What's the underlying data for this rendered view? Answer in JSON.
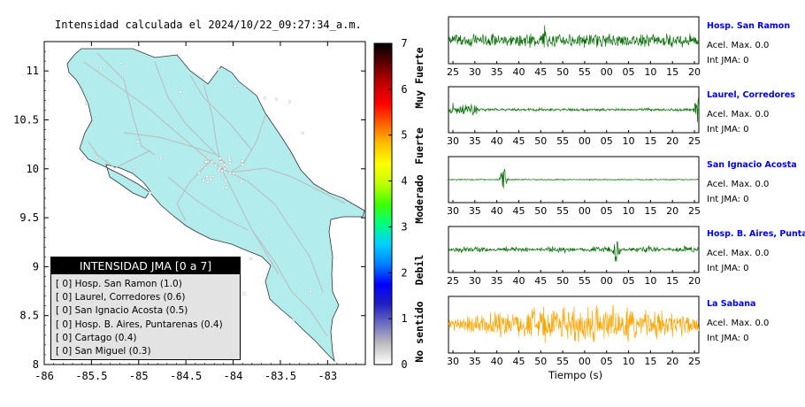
{
  "map": {
    "title": "Intensidad calculada el 2024/10/22_09:27:34_a.m.",
    "xticks": [
      "-86",
      "-85.5",
      "-85",
      "-84.5",
      "-84",
      "-83.5",
      "-83"
    ],
    "yticks": [
      "11",
      "10.5",
      "10",
      "9.5",
      "9",
      "8.5",
      "8"
    ],
    "land_color": "#b2eced",
    "road_color": "#bbbbbb"
  },
  "legend": {
    "header": "INTENSIDAD JMA [0 a 7]",
    "items": [
      {
        "value": "[ 0]",
        "name": "Hosp. San Ramon (1.0)"
      },
      {
        "value": "[ 0]",
        "name": "Laurel, Corredores (0.6)"
      },
      {
        "value": "[ 0]",
        "name": "San Ignacio Acosta (0.5)"
      },
      {
        "value": "[ 0]",
        "name": "Hosp. B. Aires, Puntarenas (0.4)"
      },
      {
        "value": "[ 0]",
        "name": "Cartago (0.4)"
      },
      {
        "value": "[ 0]",
        "name": "San Miguel (0.3)"
      }
    ]
  },
  "colorbar": {
    "ticks": [
      "0",
      "1",
      "2",
      "3",
      "4",
      "5",
      "6",
      "7"
    ],
    "labels": [
      "No sentido",
      "Debil",
      "Moderado",
      "Fuerte",
      "Muy Fuerte"
    ],
    "colors": [
      "#ffffff",
      "#c0c0c0",
      "#7070c0",
      "#2020c0",
      "#0000ff",
      "#0080ff",
      "#00d0ff",
      "#00ff80",
      "#40ff00",
      "#c0ff00",
      "#ffff00",
      "#ffc000",
      "#ff6000",
      "#ff0000",
      "#c00000",
      "#600000",
      "#000000"
    ]
  },
  "stations": [
    {
      "name": "Hosp. San Ramon",
      "acel": "Acel. Max. 0.0",
      "int": "Int JMA: 0",
      "ticks": [
        "25",
        "30",
        "35",
        "40",
        "45",
        "50",
        "55",
        "00",
        "05",
        "10",
        "15",
        "20"
      ],
      "color": "#0a6e0a"
    },
    {
      "name": "Laurel, Corredores",
      "acel": "Acel. Max. 0.0",
      "int": "Int JMA: 0",
      "ticks": [
        "30",
        "35",
        "40",
        "45",
        "50",
        "55",
        "00",
        "05",
        "10",
        "15",
        "20",
        "25"
      ],
      "color": "#0a6e0a"
    },
    {
      "name": "San Ignacio Acosta",
      "acel": "Acel. Max. 0.0",
      "int": "Int JMA: 0",
      "ticks": [
        "30",
        "35",
        "40",
        "45",
        "50",
        "55",
        "00",
        "05",
        "10",
        "15",
        "20",
        "25"
      ],
      "color": "#0a6e0a"
    },
    {
      "name": "Hosp. B. Aires, Puntare",
      "acel": "Acel. Max. 0.0",
      "int": "Int JMA: 0",
      "ticks": [
        "25",
        "30",
        "35",
        "40",
        "45",
        "50",
        "55",
        "00",
        "05",
        "10",
        "15",
        "20"
      ],
      "color": "#0a6e0a"
    },
    {
      "name": "La Sabana",
      "acel": "Acel. Max. 0.0",
      "int": "Int JMA: 0",
      "ticks": [
        "30",
        "35",
        "40",
        "45",
        "50",
        "55",
        "00",
        "05",
        "10",
        "15",
        "20",
        "25"
      ],
      "color": "#ffa500"
    }
  ],
  "xlabel": "Tiempo (s)",
  "chart_data": [
    {
      "type": "heatmap",
      "title": "Intensidad calculada el 2024/10/22_09:27:34_a.m.",
      "xlim": [
        -86,
        -82.6
      ],
      "ylim": [
        8,
        11.3
      ],
      "colorbar_range": [
        0,
        7
      ]
    },
    {
      "type": "line",
      "series": [
        {
          "name": "Hosp. San Ramon",
          "acel_max": 0.0,
          "int_jma": 0
        },
        {
          "name": "Laurel, Corredores",
          "acel_max": 0.0,
          "int_jma": 0
        },
        {
          "name": "San Ignacio Acosta",
          "acel_max": 0.0,
          "int_jma": 0
        },
        {
          "name": "Hosp. B. Aires, Puntare",
          "acel_max": 0.0,
          "int_jma": 0
        },
        {
          "name": "La Sabana",
          "acel_max": 0.0,
          "int_jma": 0
        }
      ],
      "xlabel": "Tiempo (s)"
    }
  ]
}
